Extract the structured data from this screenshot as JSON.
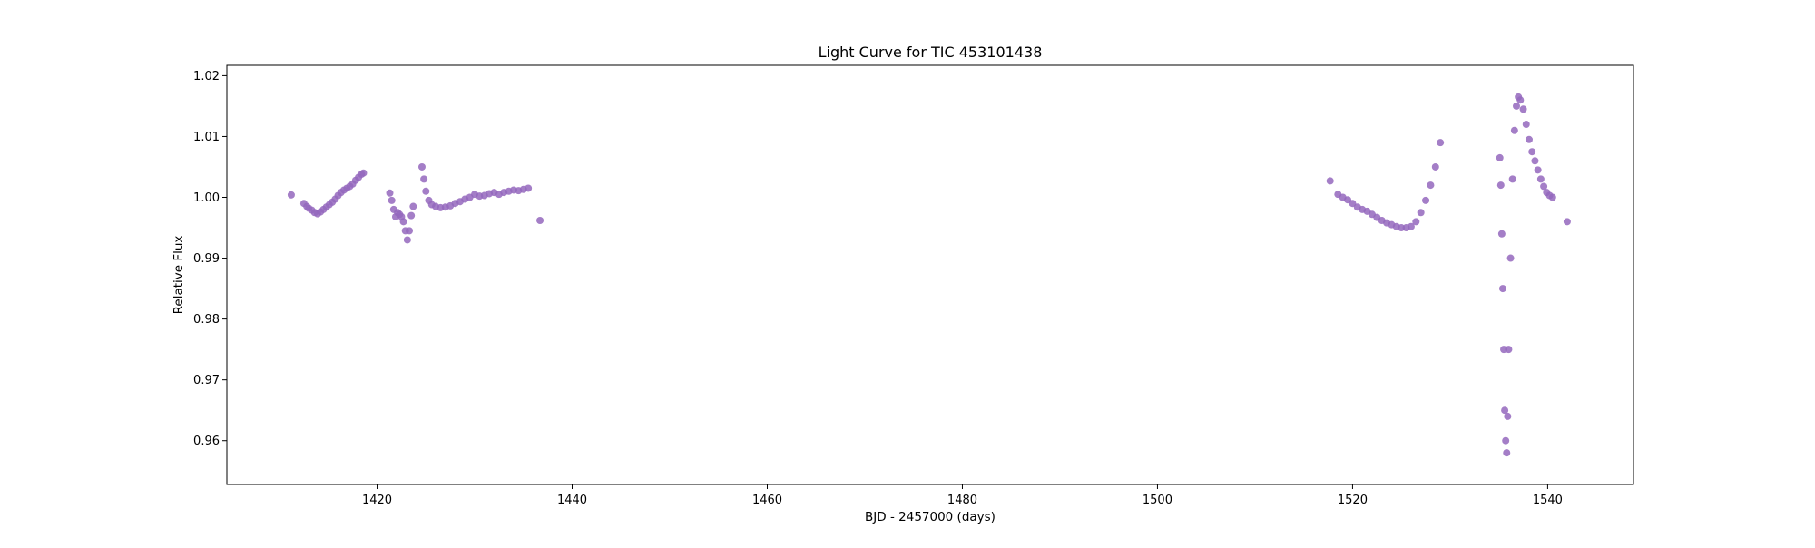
{
  "chart_data": {
    "type": "scatter",
    "title": "Light Curve for TIC 453101438",
    "xlabel": "BJD - 2457000 (days)",
    "ylabel": "Relative Flux",
    "xlim": [
      1404.6,
      1548.8
    ],
    "ylim": [
      0.9528,
      1.0217
    ],
    "xticks": [
      1420,
      1440,
      1460,
      1480,
      1500,
      1520,
      1540
    ],
    "yticks": [
      0.96,
      0.97,
      0.98,
      0.99,
      1.0,
      1.01,
      1.02
    ],
    "xtick_labels": [
      "1420",
      "1440",
      "1460",
      "1480",
      "1500",
      "1520",
      "1540"
    ],
    "ytick_labels": [
      "0.96",
      "0.97",
      "0.98",
      "0.99",
      "1.00",
      "1.01",
      "1.02"
    ],
    "grid": false,
    "series": [
      {
        "color": "#9467bd",
        "x": [
          1411.2,
          1412.5,
          1412.8,
          1413.0,
          1413.3,
          1413.6,
          1413.9,
          1414.2,
          1414.5,
          1414.8,
          1415.1,
          1415.4,
          1415.7,
          1416.0,
          1416.3,
          1416.6,
          1416.9,
          1417.2,
          1417.5,
          1417.8,
          1418.1,
          1418.4,
          1418.6,
          1421.3,
          1421.5,
          1421.7,
          1421.9,
          1422.1,
          1422.3,
          1422.5,
          1422.7,
          1422.9,
          1423.1,
          1423.3,
          1423.5,
          1423.7,
          1424.6,
          1424.8,
          1425.0,
          1425.3,
          1425.6,
          1426.0,
          1426.5,
          1427.0,
          1427.5,
          1428.0,
          1428.5,
          1429.0,
          1429.5,
          1430.0,
          1430.5,
          1431.0,
          1431.5,
          1432.0,
          1432.5,
          1433.0,
          1433.5,
          1434.0,
          1434.5,
          1435.0,
          1435.5,
          1436.7,
          1517.7,
          1518.5,
          1519.0,
          1519.5,
          1520.0,
          1520.5,
          1521.0,
          1521.5,
          1522.0,
          1522.5,
          1523.0,
          1523.5,
          1524.0,
          1524.5,
          1525.0,
          1525.5,
          1526.0,
          1526.5,
          1527.0,
          1527.5,
          1528.0,
          1528.5,
          1529.0,
          1535.1,
          1535.2,
          1535.3,
          1535.4,
          1535.5,
          1535.6,
          1535.7,
          1535.8,
          1535.9,
          1536.0,
          1536.2,
          1536.4,
          1536.6,
          1536.8,
          1537.0,
          1537.2,
          1537.5,
          1537.8,
          1538.1,
          1538.4,
          1538.7,
          1539.0,
          1539.3,
          1539.6,
          1539.9,
          1540.2,
          1540.5,
          1542.0
        ],
        "y": [
          1.0004,
          0.999,
          0.9985,
          0.9982,
          0.9979,
          0.9975,
          0.9973,
          0.9976,
          0.998,
          0.9984,
          0.9988,
          0.9992,
          0.9997,
          1.0003,
          1.0008,
          1.0012,
          1.0015,
          1.0018,
          1.0022,
          1.0028,
          1.0033,
          1.0038,
          1.004,
          1.0007,
          0.9995,
          0.998,
          0.9968,
          0.9975,
          0.9972,
          0.9968,
          0.996,
          0.9945,
          0.993,
          0.9945,
          0.997,
          0.9985,
          1.005,
          1.003,
          1.001,
          0.9995,
          0.9988,
          0.9985,
          0.9983,
          0.9984,
          0.9986,
          0.999,
          0.9993,
          0.9997,
          1.0,
          1.0005,
          1.0002,
          1.0003,
          1.0006,
          1.0008,
          1.0005,
          1.0008,
          1.001,
          1.0012,
          1.0011,
          1.0013,
          1.0015,
          0.9962,
          1.0027,
          1.0005,
          1.0,
          0.9996,
          0.999,
          0.9984,
          0.998,
          0.9977,
          0.9972,
          0.9967,
          0.9962,
          0.9958,
          0.9955,
          0.9952,
          0.995,
          0.995,
          0.9952,
          0.996,
          0.9975,
          0.9995,
          1.002,
          1.005,
          1.009,
          1.0065,
          1.002,
          0.994,
          0.985,
          0.975,
          0.965,
          0.96,
          0.958,
          0.964,
          0.975,
          0.99,
          1.003,
          1.011,
          1.015,
          1.0165,
          1.016,
          1.0145,
          1.012,
          1.0095,
          1.0075,
          1.006,
          1.0045,
          1.003,
          1.0018,
          1.0008,
          1.0003,
          1.0,
          0.996
        ]
      }
    ]
  }
}
